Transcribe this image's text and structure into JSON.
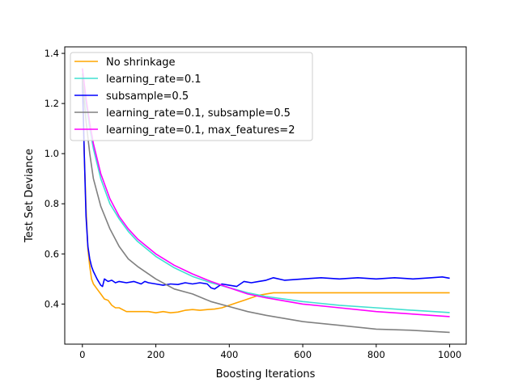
{
  "chart_data": {
    "type": "line",
    "title": "",
    "xlabel": "Boosting Iterations",
    "ylabel": "Test Set Deviance",
    "xlim": [
      -48,
      1045
    ],
    "ylim": [
      0.24,
      1.426
    ],
    "xticks": [
      0,
      200,
      400,
      600,
      800,
      1000
    ],
    "yticks": [
      0.4,
      0.6,
      0.8,
      1.0,
      1.2,
      1.4
    ],
    "xtick_labels": [
      "0",
      "200",
      "400",
      "600",
      "800",
      "1000"
    ],
    "ytick_labels": [
      "0.4",
      "0.6",
      "0.8",
      "1.0",
      "1.2",
      "1.4"
    ],
    "grid": false,
    "legend_position": "upper-left",
    "series": [
      {
        "name": "No shrinkage",
        "color": "#ffa500",
        "x": [
          0,
          5,
          10,
          15,
          20,
          25,
          30,
          40,
          50,
          60,
          70,
          80,
          90,
          100,
          120,
          140,
          160,
          180,
          200,
          220,
          240,
          260,
          280,
          300,
          320,
          340,
          360,
          380,
          400,
          420,
          440,
          460,
          480,
          500,
          520,
          540,
          600,
          700,
          800,
          900,
          1000
        ],
        "y": [
          1.32,
          1.0,
          0.78,
          0.62,
          0.55,
          0.5,
          0.48,
          0.46,
          0.44,
          0.42,
          0.415,
          0.395,
          0.385,
          0.385,
          0.37,
          0.37,
          0.37,
          0.37,
          0.365,
          0.37,
          0.365,
          0.368,
          0.375,
          0.378,
          0.375,
          0.378,
          0.38,
          0.385,
          0.395,
          0.405,
          0.415,
          0.425,
          0.435,
          0.44,
          0.445,
          0.445,
          0.445,
          0.445,
          0.445,
          0.445,
          0.445
        ]
      },
      {
        "name": "learning_rate=0.1",
        "color": "#40e0d0",
        "x": [
          0,
          10,
          20,
          30,
          50,
          75,
          100,
          125,
          150,
          200,
          250,
          300,
          350,
          400,
          450,
          500,
          600,
          700,
          800,
          900,
          1000
        ],
        "y": [
          1.32,
          1.2,
          1.1,
          1.02,
          0.9,
          0.8,
          0.74,
          0.69,
          0.65,
          0.59,
          0.545,
          0.51,
          0.485,
          0.465,
          0.445,
          0.43,
          0.41,
          0.395,
          0.385,
          0.375,
          0.366
        ]
      },
      {
        "name": "subsample=0.5",
        "color": "#0000ff",
        "x": [
          0,
          5,
          10,
          15,
          20,
          25,
          30,
          40,
          50,
          55,
          60,
          70,
          80,
          90,
          100,
          120,
          140,
          160,
          170,
          180,
          200,
          220,
          240,
          260,
          280,
          300,
          320,
          340,
          350,
          360,
          380,
          400,
          420,
          440,
          460,
          480,
          500,
          520,
          550,
          600,
          650,
          700,
          750,
          800,
          850,
          900,
          950,
          980,
          1000
        ],
        "y": [
          1.3,
          1.0,
          0.75,
          0.63,
          0.58,
          0.55,
          0.53,
          0.5,
          0.475,
          0.47,
          0.5,
          0.49,
          0.495,
          0.485,
          0.49,
          0.485,
          0.49,
          0.48,
          0.49,
          0.485,
          0.48,
          0.475,
          0.48,
          0.478,
          0.485,
          0.48,
          0.485,
          0.48,
          0.465,
          0.46,
          0.48,
          0.475,
          0.47,
          0.49,
          0.485,
          0.49,
          0.495,
          0.505,
          0.495,
          0.5,
          0.505,
          0.5,
          0.505,
          0.5,
          0.505,
          0.5,
          0.505,
          0.508,
          0.503
        ]
      },
      {
        "name": "learning_rate=0.1, subsample=0.5",
        "color": "#808080",
        "x": [
          0,
          10,
          20,
          30,
          50,
          75,
          100,
          125,
          150,
          200,
          250,
          300,
          350,
          400,
          450,
          500,
          600,
          700,
          800,
          900,
          1000
        ],
        "y": [
          1.3,
          1.13,
          1.0,
          0.9,
          0.79,
          0.7,
          0.63,
          0.58,
          0.55,
          0.5,
          0.46,
          0.44,
          0.41,
          0.39,
          0.37,
          0.355,
          0.33,
          0.315,
          0.3,
          0.295,
          0.287
        ]
      },
      {
        "name": "learning_rate=0.1, max_features=2",
        "color": "#ff00ff",
        "x": [
          0,
          10,
          20,
          30,
          50,
          75,
          100,
          125,
          150,
          200,
          250,
          300,
          350,
          400,
          450,
          500,
          600,
          700,
          800,
          900,
          1000
        ],
        "y": [
          1.34,
          1.22,
          1.12,
          1.04,
          0.92,
          0.82,
          0.75,
          0.7,
          0.66,
          0.6,
          0.555,
          0.52,
          0.49,
          0.465,
          0.44,
          0.425,
          0.4,
          0.385,
          0.37,
          0.36,
          0.35
        ]
      }
    ]
  }
}
